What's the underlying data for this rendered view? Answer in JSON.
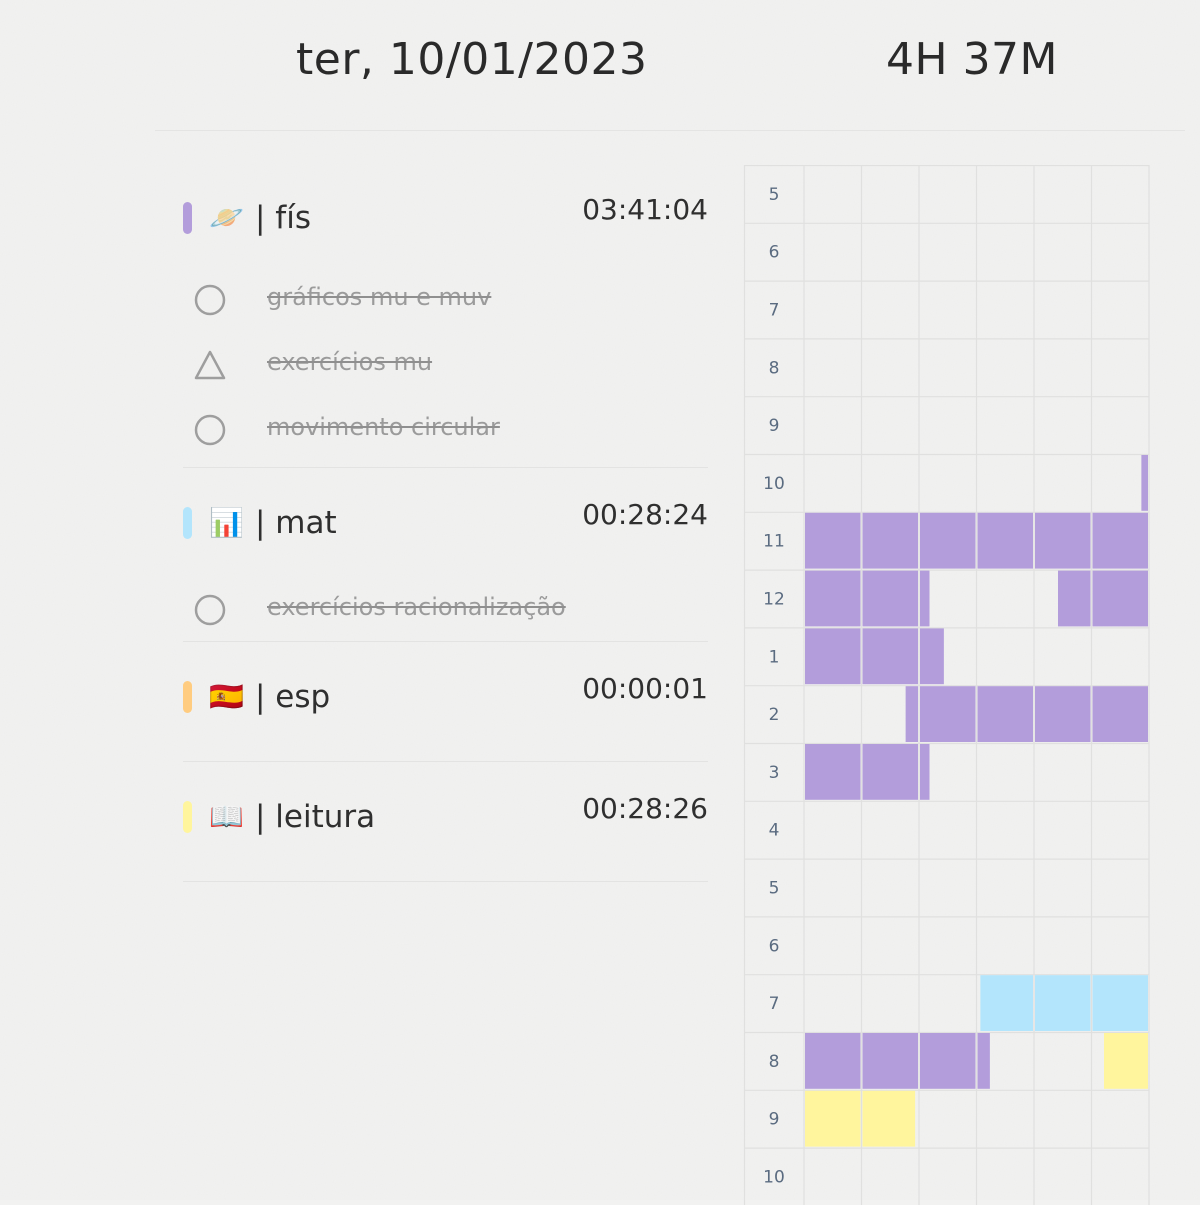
{
  "header": {
    "date": "ter, 10/01/2023",
    "total_time": "4H 37M"
  },
  "colors": {
    "fis": "#b39ddb",
    "mat": "#b3e5fc",
    "esp": "#ffcc80",
    "leitura": "#fff59d"
  },
  "subjects": [
    {
      "emoji": "🪐",
      "emoji_name": "planet-icon",
      "name": "| fís",
      "time": "03:41:04",
      "color": "#b39ddb",
      "tasks": [
        {
          "label": "gráficos mu e muv",
          "icon": "circle"
        },
        {
          "label": "exercícios mu",
          "icon": "triangle"
        },
        {
          "label": "movimento circular",
          "icon": "circle"
        }
      ]
    },
    {
      "emoji": "📊",
      "emoji_name": "bar-chart-icon",
      "name": "| mat",
      "time": "00:28:24",
      "color": "#b3e5fc",
      "tasks": [
        {
          "label": "exercícios racionalização",
          "icon": "circle"
        }
      ]
    },
    {
      "emoji": "🇪🇸",
      "emoji_name": "spain-flag-icon",
      "name": "| esp",
      "time": "00:00:01",
      "color": "#ffcc80",
      "tasks": []
    },
    {
      "emoji": "📖",
      "emoji_name": "open-book-icon",
      "name": "| leitura",
      "time": "00:28:26",
      "color": "#fff59d",
      "tasks": []
    }
  ],
  "timeline": {
    "hour_labels": [
      "5",
      "6",
      "7",
      "8",
      "9",
      "10",
      "11",
      "12",
      "1",
      "2",
      "3",
      "4",
      "5",
      "6",
      "7",
      "8",
      "9",
      "10"
    ],
    "columns_per_hour": 6,
    "blocks": [
      {
        "subject": "fis",
        "row": 5,
        "start": 5.85,
        "end": 6.0
      },
      {
        "subject": "fis",
        "row": 6,
        "start": 0,
        "end": 6.0
      },
      {
        "subject": "fis",
        "row": 7,
        "start": 0,
        "end": 2.2
      },
      {
        "subject": "fis",
        "row": 7,
        "start": 4.4,
        "end": 6.0
      },
      {
        "subject": "fis",
        "row": 8,
        "start": 0,
        "end": 2.45
      },
      {
        "subject": "fis",
        "row": 9,
        "start": 1.75,
        "end": 6.0
      },
      {
        "subject": "fis",
        "row": 10,
        "start": 0,
        "end": 2.2
      },
      {
        "subject": "mat",
        "row": 14,
        "start": 3.05,
        "end": 6.0
      },
      {
        "subject": "fis",
        "row": 15,
        "start": 0,
        "end": 3.25
      },
      {
        "subject": "leitura",
        "row": 15,
        "start": 5.2,
        "end": 6.0
      },
      {
        "subject": "leitura",
        "row": 16,
        "start": 0,
        "end": 1.95
      }
    ]
  }
}
